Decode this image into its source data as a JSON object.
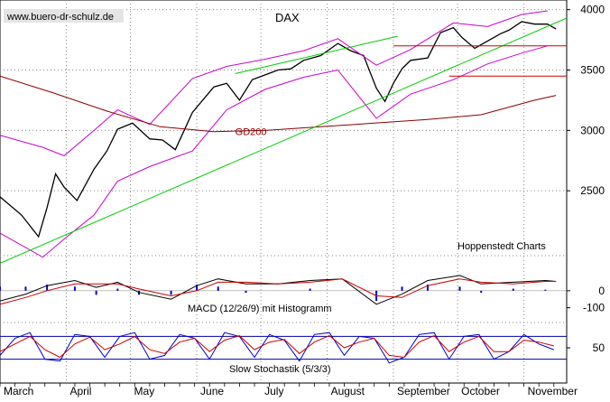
{
  "source_label": "www.buero-dr-schulz.de",
  "chart_data": [
    {
      "panel": "price",
      "type": "line",
      "title": "DAX",
      "credit": "Hoppenstedt Charts",
      "ylim": [
        2000,
        4050
      ],
      "y_ticks": [
        2500,
        3000,
        3500,
        4000
      ],
      "y_tick_labels": [
        "2500",
        "3000",
        "3500",
        "4000"
      ],
      "grid": true,
      "x_label_months": [
        "March",
        "April",
        "May",
        "June",
        "July",
        "August",
        "September",
        "October",
        "November"
      ],
      "x_domain": [
        0,
        265
      ],
      "month_start_days": [
        0,
        31,
        61,
        92,
        122,
        153,
        184,
        214,
        245
      ],
      "series": [
        {
          "name": "DAX close",
          "color": "#000000",
          "x": [
            0,
            10,
            18,
            22,
            26,
            30,
            36,
            44,
            50,
            55,
            62,
            70,
            76,
            82,
            90,
            100,
            106,
            112,
            118,
            124,
            130,
            136,
            142,
            150,
            158,
            164,
            170,
            176,
            180,
            184,
            188,
            192,
            200,
            206,
            212,
            216,
            222,
            228,
            234,
            238,
            244,
            250,
            256,
            260
          ],
          "values": [
            2450,
            2300,
            2120,
            2360,
            2640,
            2530,
            2420,
            2680,
            2830,
            3010,
            3060,
            2930,
            2920,
            2840,
            3150,
            3360,
            3390,
            3250,
            3420,
            3460,
            3500,
            3510,
            3580,
            3620,
            3720,
            3660,
            3620,
            3350,
            3240,
            3390,
            3510,
            3580,
            3600,
            3810,
            3850,
            3770,
            3680,
            3740,
            3800,
            3830,
            3900,
            3880,
            3880,
            3840
          ]
        },
        {
          "name": "Upper band",
          "color": "#cc00cc",
          "x": [
            0,
            20,
            30,
            44,
            55,
            70,
            90,
            106,
            124,
            142,
            158,
            176,
            192,
            212,
            228,
            244,
            256
          ],
          "values": [
            2960,
            2860,
            2790,
            3000,
            3170,
            3050,
            3430,
            3530,
            3590,
            3660,
            3760,
            3540,
            3670,
            3890,
            3860,
            3960,
            3990
          ]
        },
        {
          "name": "Lower band",
          "color": "#cc00cc",
          "x": [
            0,
            20,
            30,
            44,
            55,
            70,
            90,
            106,
            124,
            142,
            158,
            176,
            192,
            212,
            228,
            244,
            256
          ],
          "values": [
            2150,
            1950,
            2100,
            2300,
            2580,
            2700,
            2830,
            3170,
            3340,
            3440,
            3500,
            3100,
            3300,
            3420,
            3550,
            3640,
            3700
          ]
        },
        {
          "name": "GD200",
          "color": "#8b0000",
          "x": [
            0,
            25,
            50,
            75,
            100,
            125,
            150,
            175,
            200,
            225,
            250,
            260
          ],
          "values": [
            3450,
            3310,
            3160,
            3030,
            2990,
            3000,
            3030,
            3060,
            3090,
            3130,
            3250,
            3290
          ]
        },
        {
          "name": "Trendline lower",
          "color": "#00cc00",
          "x": [
            0,
            265
          ],
          "values": [
            1900,
            3930
          ]
        },
        {
          "name": "Trendline upper",
          "color": "#00cc00",
          "x": [
            110,
            186
          ],
          "values": [
            3470,
            3780
          ]
        },
        {
          "name": "Resistance 3700",
          "color": "#cc0000",
          "x": [
            184,
            265
          ],
          "values": [
            3700,
            3700
          ]
        },
        {
          "name": "Support 3450",
          "color": "#cc0000",
          "x": [
            210,
            265
          ],
          "values": [
            3450,
            3450
          ]
        }
      ],
      "annotations": [
        {
          "text": "GD200",
          "x": 110,
          "value": 2960
        }
      ]
    },
    {
      "panel": "macd",
      "type": "line",
      "title": "MACD (12/26/9) mit Histogramm",
      "ylim": [
        -150,
        180
      ],
      "y_ticks": [
        0,
        -100
      ],
      "y_tick_labels": [
        "0",
        "-100"
      ],
      "series": [
        {
          "name": "MACD",
          "color": "#000000",
          "x": [
            0,
            12,
            22,
            35,
            45,
            55,
            65,
            80,
            92,
            102,
            115,
            130,
            145,
            160,
            176,
            188,
            200,
            215,
            225,
            240,
            255,
            260
          ],
          "values": [
            -60,
            -20,
            30,
            60,
            20,
            50,
            -10,
            -50,
            30,
            70,
            40,
            40,
            60,
            70,
            -80,
            -20,
            60,
            90,
            40,
            50,
            60,
            55
          ]
        },
        {
          "name": "Signal",
          "color": "#cc0000",
          "x": [
            0,
            12,
            22,
            35,
            45,
            55,
            65,
            80,
            92,
            102,
            115,
            130,
            145,
            160,
            176,
            188,
            200,
            215,
            225,
            240,
            255,
            260
          ],
          "values": [
            -80,
            -40,
            0,
            40,
            40,
            40,
            10,
            -30,
            0,
            50,
            50,
            40,
            50,
            70,
            -30,
            -40,
            30,
            70,
            50,
            40,
            55,
            55
          ]
        }
      ]
    },
    {
      "panel": "stochastic",
      "type": "line",
      "title": "Slow Stochastik (5/3/3)",
      "ylim": [
        0,
        100
      ],
      "y_ticks": [
        50
      ],
      "y_tick_labels": [
        "50"
      ],
      "reference_levels": [
        80,
        20
      ],
      "series": [
        {
          "name": "%K",
          "color": "#0000cc",
          "x": [
            0,
            7,
            14,
            21,
            28,
            35,
            42,
            49,
            56,
            63,
            70,
            77,
            84,
            91,
            98,
            105,
            112,
            119,
            126,
            133,
            140,
            147,
            154,
            161,
            168,
            175,
            182,
            189,
            196,
            203,
            210,
            217,
            224,
            231,
            238,
            245,
            252,
            259
          ],
          "values": [
            30,
            75,
            90,
            20,
            15,
            85,
            80,
            25,
            80,
            90,
            20,
            30,
            85,
            75,
            20,
            90,
            80,
            25,
            85,
            70,
            15,
            85,
            90,
            30,
            80,
            75,
            10,
            25,
            85,
            90,
            20,
            80,
            85,
            20,
            40,
            85,
            60,
            45
          ]
        },
        {
          "name": "%D",
          "color": "#cc0000",
          "x": [
            0,
            7,
            14,
            21,
            28,
            35,
            42,
            49,
            56,
            63,
            70,
            77,
            84,
            91,
            98,
            105,
            112,
            119,
            126,
            133,
            140,
            147,
            154,
            161,
            168,
            175,
            182,
            189,
            196,
            203,
            210,
            217,
            224,
            231,
            238,
            245,
            252,
            259
          ],
          "values": [
            40,
            60,
            80,
            45,
            25,
            60,
            78,
            45,
            60,
            80,
            45,
            35,
            65,
            75,
            40,
            70,
            82,
            45,
            65,
            72,
            35,
            65,
            82,
            50,
            65,
            75,
            30,
            25,
            65,
            82,
            40,
            65,
            80,
            40,
            40,
            70,
            65,
            55
          ]
        }
      ]
    }
  ]
}
